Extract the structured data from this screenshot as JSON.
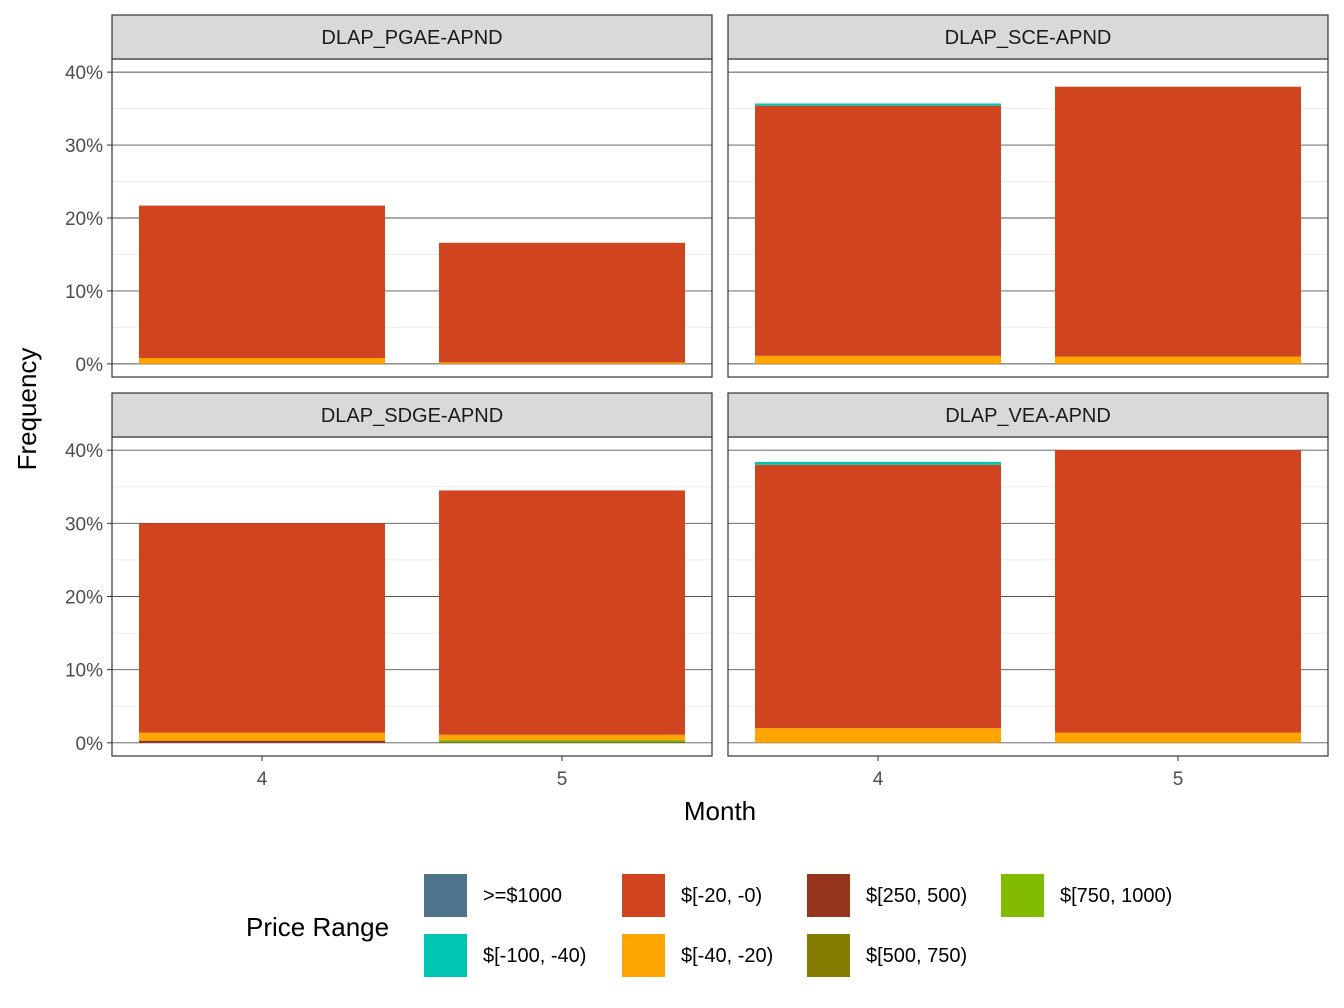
{
  "chart_data": {
    "type": "bar",
    "stacked": true,
    "facet_layout": "2x2",
    "xlabel": "Month",
    "ylabel": "Frequency",
    "categories": [
      "4",
      "5"
    ],
    "y_ticks": [
      "0%",
      "10%",
      "20%",
      "30%",
      "40%"
    ],
    "ylim": [
      -1.8,
      41.8
    ],
    "grid": true,
    "legend": {
      "title": "Price Range",
      "placement": "bottom",
      "items": [
        {
          "label": ">=$1000",
          "color": "#4E748B"
        },
        {
          "label": "$[-100, -40)",
          "color": "#00C5B2"
        },
        {
          "label": "$[-20, -0)",
          "color": "#D04520"
        },
        {
          "label": "$[-40, -20)",
          "color": "#FFA500"
        },
        {
          "label": "$[250, 500)",
          "color": "#96351E"
        },
        {
          "label": "$[500, 750)",
          "color": "#857C02"
        },
        {
          "label": "$[750, 1000)",
          "color": "#82BC00"
        }
      ]
    },
    "facets": [
      {
        "title": "DLAP_PGAE-APND",
        "stacks": [
          [
            {
              "range": "$[-40, -20)",
              "value": 0.8
            },
            {
              "range": "$[-20, -0)",
              "value": 20.9
            }
          ],
          [
            {
              "range": "$[-40, -20)",
              "value": 0.2
            },
            {
              "range": "$[-20, -0)",
              "value": 16.4
            }
          ]
        ]
      },
      {
        "title": "DLAP_SCE-APND",
        "stacks": [
          [
            {
              "range": "$[-40, -20)",
              "value": 1.1
            },
            {
              "range": "$[-20, -0)",
              "value": 34.3
            },
            {
              "range": "$[-100, -40)",
              "value": 0.3
            }
          ],
          [
            {
              "range": "$[-40, -20)",
              "value": 1.0
            },
            {
              "range": "$[-20, -0)",
              "value": 37.0
            }
          ]
        ]
      },
      {
        "title": "DLAP_SDGE-APND",
        "stacks": [
          [
            {
              "range": "$[250, 500)",
              "value": 0.3
            },
            {
              "range": "$[-40, -20)",
              "value": 1.1
            },
            {
              "range": "$[-20, -0)",
              "value": 28.6
            }
          ],
          [
            {
              "range": "$[500, 750)",
              "value": 0.2
            },
            {
              "range": "$[750, 1000)",
              "value": 0.2
            },
            {
              "range": "$[-40, -20)",
              "value": 0.7
            },
            {
              "range": "$[-20, -0)",
              "value": 33.4
            }
          ]
        ]
      },
      {
        "title": "DLAP_VEA-APND",
        "stacks": [
          [
            {
              "range": "$[-40, -20)",
              "value": 2.0
            },
            {
              "range": "$[-20, -0)",
              "value": 36.0
            },
            {
              "range": "$[-100, -40)",
              "value": 0.4
            }
          ],
          [
            {
              "range": "$[-40, -20)",
              "value": 1.4
            },
            {
              "range": "$[-20, -0)",
              "value": 38.6
            }
          ]
        ]
      }
    ]
  }
}
